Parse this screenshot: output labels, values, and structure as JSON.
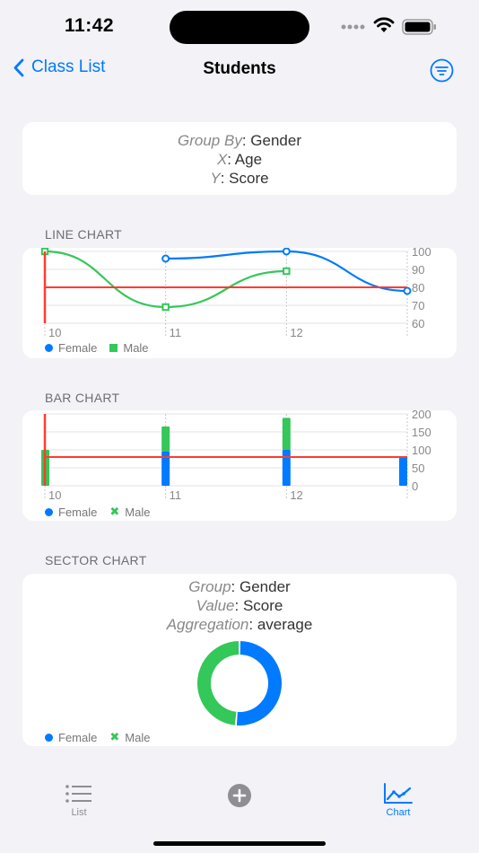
{
  "status": {
    "time": "11:42"
  },
  "nav": {
    "back_label": "Class List",
    "title": "Students"
  },
  "info": {
    "group_key": "Group By",
    "group_val": ": Gender",
    "x_key": "X",
    "x_val": ": Age",
    "y_key": "Y",
    "y_val": ": Score"
  },
  "line_section": {
    "label": "LINE CHART"
  },
  "bar_section": {
    "label": "BAR CHART"
  },
  "sector_section": {
    "label": "SECTOR CHART",
    "group_key": "Group",
    "group_val": ": Gender",
    "value_key": "Value",
    "value_val": ": Score",
    "agg_key": "Aggregation",
    "agg_val": ": average"
  },
  "legend": {
    "female": "Female",
    "male": "Male"
  },
  "colors": {
    "female": "#007aff",
    "male": "#34c759",
    "rule": "#ff3b30"
  },
  "tabs": [
    {
      "label": "List",
      "icon": "list-icon"
    },
    {
      "label": "",
      "icon": "plus-circle-icon"
    },
    {
      "label": "Chart",
      "icon": "chart-icon"
    }
  ],
  "chart_data": [
    {
      "type": "line",
      "x_ticks": [
        "10",
        "11",
        "12"
      ],
      "y_ticks": [
        "60",
        "70",
        "80",
        "90",
        "100"
      ],
      "ylim": [
        60,
        100
      ],
      "rule_y": 80,
      "series": [
        {
          "name": "Female",
          "points": [
            [
              11,
              96
            ],
            [
              12,
              100
            ],
            [
              13,
              78
            ]
          ]
        },
        {
          "name": "Male",
          "points": [
            [
              10,
              100
            ],
            [
              11,
              69
            ],
            [
              12,
              89
            ]
          ]
        }
      ]
    },
    {
      "type": "bar",
      "x_ticks": [
        "10",
        "11",
        "12"
      ],
      "y_ticks": [
        "0",
        "50",
        "100",
        "150",
        "200"
      ],
      "ylim": [
        0,
        200
      ],
      "rule_y": 80,
      "series": [
        {
          "name": "Female",
          "values": [
            [
              11,
              96
            ],
            [
              12,
              100
            ],
            [
              13,
              78
            ]
          ]
        },
        {
          "name": "Male",
          "values": [
            [
              10,
              100
            ],
            [
              11,
              69
            ],
            [
              12,
              89
            ]
          ]
        }
      ]
    },
    {
      "type": "pie",
      "donut": true,
      "slices": [
        {
          "name": "Female",
          "value": 91
        },
        {
          "name": "Male",
          "value": 86
        }
      ]
    }
  ]
}
